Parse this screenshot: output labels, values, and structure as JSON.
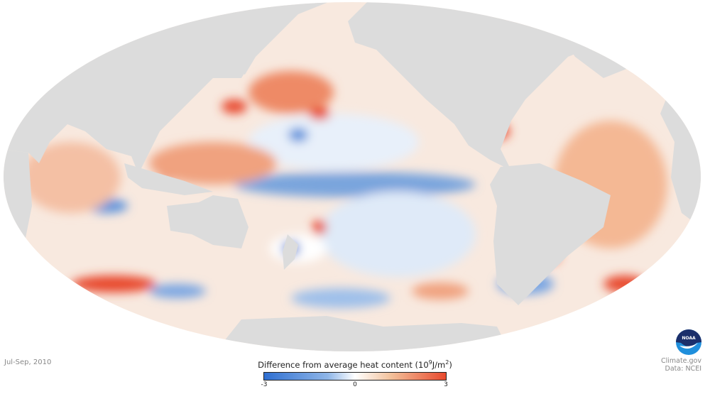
{
  "period": "Jul-Sep, 2010",
  "legend": {
    "title": "Difference from average heat content",
    "unit_base": "(10",
    "unit_exp": "9",
    "unit_mid": "J/m",
    "unit_sq": "2",
    "unit_end": ")",
    "ticks": [
      "-3",
      "0",
      "3"
    ],
    "colors": {
      "low": "#2f6fd1",
      "mid": "#ffffff",
      "high": "#e8492d"
    }
  },
  "credits": {
    "site": "Climate.gov",
    "data": "Data: NCEI",
    "logo_text": "NOAA"
  },
  "colors": {
    "land": "#dcdcdc",
    "background": "#ffffff"
  }
}
